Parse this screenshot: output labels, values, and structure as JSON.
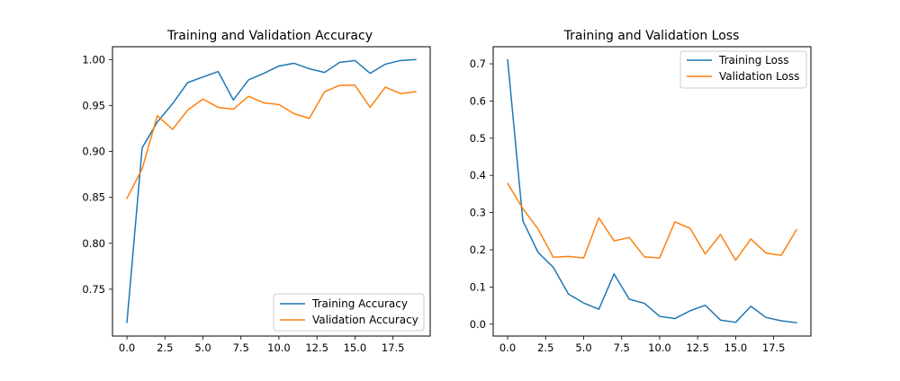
{
  "chart_data": [
    {
      "type": "line",
      "title": "Training and Validation Accuracy",
      "xlabel": "",
      "ylabel": "",
      "xlim": [
        -0.95,
        19.95
      ],
      "ylim": [
        0.699,
        1.014
      ],
      "xticks": [
        0.0,
        2.5,
        5.0,
        7.5,
        10.0,
        12.5,
        15.0,
        17.5
      ],
      "xtick_labels": [
        "0.0",
        "2.5",
        "5.0",
        "7.5",
        "10.0",
        "12.5",
        "15.0",
        "17.5"
      ],
      "yticks": [
        0.75,
        0.8,
        0.85,
        0.9,
        0.95,
        1.0
      ],
      "ytick_labels": [
        "0.75",
        "0.80",
        "0.85",
        "0.90",
        "0.95",
        "1.00"
      ],
      "grid": false,
      "legend_position": "lower-right",
      "x": [
        0,
        1,
        2,
        3,
        4,
        5,
        6,
        7,
        8,
        9,
        10,
        11,
        12,
        13,
        14,
        15,
        16,
        17,
        18,
        19
      ],
      "series": [
        {
          "name": "Training Accuracy",
          "color": "#1f77b4",
          "values": [
            0.714,
            0.904,
            0.932,
            0.952,
            0.975,
            0.981,
            0.987,
            0.956,
            0.978,
            0.985,
            0.993,
            0.996,
            0.99,
            0.986,
            0.997,
            0.999,
            0.985,
            0.995,
            0.999,
            1.0
          ]
        },
        {
          "name": "Validation Accuracy",
          "color": "#ff7f0e",
          "values": [
            0.849,
            0.881,
            0.939,
            0.924,
            0.945,
            0.957,
            0.948,
            0.946,
            0.96,
            0.953,
            0.951,
            0.941,
            0.936,
            0.965,
            0.972,
            0.972,
            0.948,
            0.97,
            0.963,
            0.965
          ]
        }
      ]
    },
    {
      "type": "line",
      "title": "Training and Validation Loss",
      "xlabel": "",
      "ylabel": "",
      "xlim": [
        -0.95,
        19.95
      ],
      "ylim": [
        -0.032,
        0.746
      ],
      "xticks": [
        0.0,
        2.5,
        5.0,
        7.5,
        10.0,
        12.5,
        15.0,
        17.5
      ],
      "xtick_labels": [
        "0.0",
        "2.5",
        "5.0",
        "7.5",
        "10.0",
        "12.5",
        "15.0",
        "17.5"
      ],
      "yticks": [
        0.0,
        0.1,
        0.2,
        0.3,
        0.4,
        0.5,
        0.6,
        0.7
      ],
      "ytick_labels": [
        "0.0",
        "0.1",
        "0.2",
        "0.3",
        "0.4",
        "0.5",
        "0.6",
        "0.7"
      ],
      "grid": false,
      "legend_position": "upper-right",
      "x": [
        0,
        1,
        2,
        3,
        4,
        5,
        6,
        7,
        8,
        9,
        10,
        11,
        12,
        13,
        14,
        15,
        16,
        17,
        18,
        19
      ],
      "series": [
        {
          "name": "Training Loss",
          "color": "#1f77b4",
          "values": [
            0.711,
            0.278,
            0.193,
            0.153,
            0.081,
            0.057,
            0.04,
            0.135,
            0.067,
            0.056,
            0.021,
            0.015,
            0.036,
            0.051,
            0.011,
            0.005,
            0.048,
            0.018,
            0.009,
            0.004
          ]
        },
        {
          "name": "Validation Loss",
          "color": "#ff7f0e",
          "values": [
            0.378,
            0.311,
            0.256,
            0.18,
            0.182,
            0.178,
            0.286,
            0.224,
            0.233,
            0.181,
            0.178,
            0.275,
            0.258,
            0.189,
            0.241,
            0.172,
            0.229,
            0.191,
            0.185,
            0.254
          ]
        }
      ]
    }
  ]
}
